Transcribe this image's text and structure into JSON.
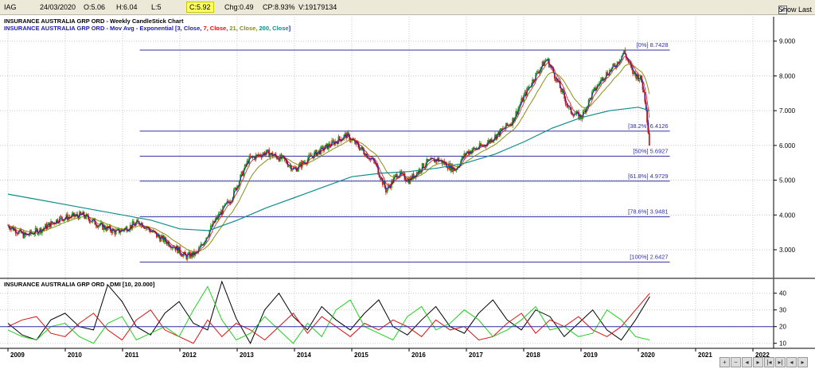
{
  "header": {
    "ticker": "IAG",
    "date": "24/03/2020",
    "open": "O:5.06",
    "high": "H:6.04",
    "low": "L:5",
    "close": "C:5.92",
    "change": "Chg:0.49",
    "change_pct": "CP:8.93%",
    "volume": "V:19179134",
    "show_last_label": "Show Last",
    "show_last_checked": "✓"
  },
  "nav_icons": [
    "zoom-in-icon",
    "zoom-out-icon",
    "scroll-left-icon",
    "scroll-right-icon",
    "first-icon",
    "last-icon",
    "prev-icon",
    "next-icon"
  ],
  "chart_data": [
    {
      "type": "candlestick",
      "title": "INSURANCE AUSTRALIA GRP ORD - Weekly CandleStick Chart",
      "subtitle_prefix": "INSURANCE AUSTRALIA GRP ORD - Mov Avg - Exponential [",
      "ma_legend": [
        {
          "text": "3, Close, ",
          "color": "#1a1ab4"
        },
        {
          "text": "7, Close, ",
          "color": "#e01010"
        },
        {
          "text": "21, Close, ",
          "color": "#8c8c14"
        },
        {
          "text": "200, Close",
          "color": "#0f8c8c"
        }
      ],
      "subtitle_suffix": "]",
      "x_range": [
        2009.0,
        2022.5
      ],
      "ylim": [
        2.2,
        9.2
      ],
      "y_ticks": [
        "3.000",
        "4.000",
        "5.000",
        "6.000",
        "7.000",
        "8.000",
        "9.000"
      ],
      "y_tick_values": [
        3,
        4,
        5,
        6,
        7,
        8,
        9
      ],
      "x_ticks": [
        "2009",
        "2010",
        "2011",
        "2012",
        "2013",
        "2014",
        "2015",
        "2016",
        "2017",
        "2018",
        "2019",
        "2020",
        "2021",
        "2022"
      ],
      "fib_levels": [
        {
          "label": "[0%] 8.7428",
          "value": 8.7428
        },
        {
          "label": "[38.2%] 6.4126",
          "value": 6.4126
        },
        {
          "label": "[50%] 5.6927",
          "value": 5.6927
        },
        {
          "label": "[61.8%] 4.9729",
          "value": 4.9729
        },
        {
          "label": "[78.6%] 3.9481",
          "value": 3.9481
        },
        {
          "label": "[100%] 2.6427",
          "value": 2.6427
        }
      ],
      "fib_x_start": 2011.3,
      "fib_x_end": 2020.55,
      "price_path": [
        [
          2009.0,
          3.7
        ],
        [
          2009.3,
          3.4
        ],
        [
          2009.6,
          3.6
        ],
        [
          2009.9,
          3.9
        ],
        [
          2010.3,
          4.0
        ],
        [
          2010.6,
          3.7
        ],
        [
          2010.9,
          3.5
        ],
        [
          2011.3,
          3.8
        ],
        [
          2011.6,
          3.4
        ],
        [
          2011.9,
          3.1
        ],
        [
          2012.1,
          2.8
        ],
        [
          2012.3,
          2.9
        ],
        [
          2012.6,
          3.8
        ],
        [
          2012.9,
          4.5
        ],
        [
          2013.2,
          5.6
        ],
        [
          2013.5,
          5.8
        ],
        [
          2013.8,
          5.6
        ],
        [
          2014.0,
          5.3
        ],
        [
          2014.3,
          5.7
        ],
        [
          2014.6,
          6.0
        ],
        [
          2014.9,
          6.3
        ],
        [
          2015.1,
          6.0
        ],
        [
          2015.4,
          5.5
        ],
        [
          2015.6,
          4.7
        ],
        [
          2015.8,
          5.2
        ],
        [
          2016.0,
          5.0
        ],
        [
          2016.3,
          5.5
        ],
        [
          2016.5,
          5.6
        ],
        [
          2016.8,
          5.3
        ],
        [
          2017.0,
          5.8
        ],
        [
          2017.3,
          6.0
        ],
        [
          2017.6,
          6.4
        ],
        [
          2017.8,
          6.7
        ],
        [
          2018.0,
          7.4
        ],
        [
          2018.2,
          8.0
        ],
        [
          2018.4,
          8.5
        ],
        [
          2018.6,
          7.8
        ],
        [
          2018.8,
          7.0
        ],
        [
          2019.0,
          6.8
        ],
        [
          2019.2,
          7.5
        ],
        [
          2019.4,
          8.0
        ],
        [
          2019.6,
          8.3
        ],
        [
          2019.75,
          8.7
        ],
        [
          2019.9,
          8.1
        ],
        [
          2020.05,
          7.9
        ],
        [
          2020.13,
          7.2
        ],
        [
          2020.2,
          5.9
        ]
      ],
      "ema200_path": [
        [
          2009.0,
          4.6
        ],
        [
          2009.5,
          4.45
        ],
        [
          2010.0,
          4.3
        ],
        [
          2010.5,
          4.15
        ],
        [
          2011.0,
          4.0
        ],
        [
          2011.5,
          3.85
        ],
        [
          2012.0,
          3.6
        ],
        [
          2012.5,
          3.55
        ],
        [
          2013.0,
          3.85
        ],
        [
          2013.5,
          4.2
        ],
        [
          2014.0,
          4.5
        ],
        [
          2014.5,
          4.8
        ],
        [
          2015.0,
          5.1
        ],
        [
          2015.5,
          5.2
        ],
        [
          2016.0,
          5.25
        ],
        [
          2016.5,
          5.35
        ],
        [
          2017.0,
          5.5
        ],
        [
          2017.5,
          5.75
        ],
        [
          2018.0,
          6.1
        ],
        [
          2018.5,
          6.5
        ],
        [
          2019.0,
          6.8
        ],
        [
          2019.5,
          7.0
        ],
        [
          2020.0,
          7.1
        ],
        [
          2020.2,
          7.0
        ]
      ]
    },
    {
      "type": "line",
      "title": "INSURANCE AUSTRALIA GRP ORD - DMI [10, 20.000]",
      "x_range": [
        2009.0,
        2022.5
      ],
      "ylim": [
        7,
        47
      ],
      "y_ticks": [
        "10",
        "20",
        "30",
        "40"
      ],
      "y_tick_values": [
        10,
        20,
        30,
        40
      ],
      "threshold": 20,
      "series": [
        {
          "color": "#000000",
          "values": [
            22,
            15,
            12,
            24,
            28,
            20,
            18,
            45,
            35,
            20,
            15,
            28,
            35,
            22,
            18,
            48,
            25,
            10,
            30,
            40,
            26,
            18,
            32,
            24,
            18,
            28,
            36,
            20,
            15,
            24,
            32,
            20,
            16,
            28,
            36,
            24,
            18,
            30,
            26,
            14,
            22,
            30,
            18,
            12,
            24,
            38
          ]
        },
        {
          "color": "#e01010",
          "values": [
            20,
            24,
            26,
            16,
            14,
            22,
            28,
            18,
            12,
            24,
            30,
            18,
            14,
            10,
            24,
            14,
            22,
            18,
            12,
            20,
            28,
            16,
            26,
            20,
            14,
            22,
            18,
            24,
            20,
            14,
            24,
            18,
            20,
            12,
            14,
            22,
            28,
            16,
            24,
            20,
            26,
            18,
            14,
            20,
            30,
            40
          ]
        },
        {
          "color": "#20d020",
          "values": [
            18,
            14,
            12,
            20,
            22,
            14,
            10,
            22,
            26,
            12,
            16,
            20,
            14,
            30,
            44,
            24,
            12,
            16,
            26,
            18,
            10,
            22,
            14,
            30,
            36,
            20,
            16,
            12,
            26,
            32,
            18,
            22,
            30,
            24,
            14,
            18,
            24,
            32,
            18,
            20,
            14,
            16,
            30,
            24,
            14,
            12
          ]
        }
      ]
    }
  ]
}
